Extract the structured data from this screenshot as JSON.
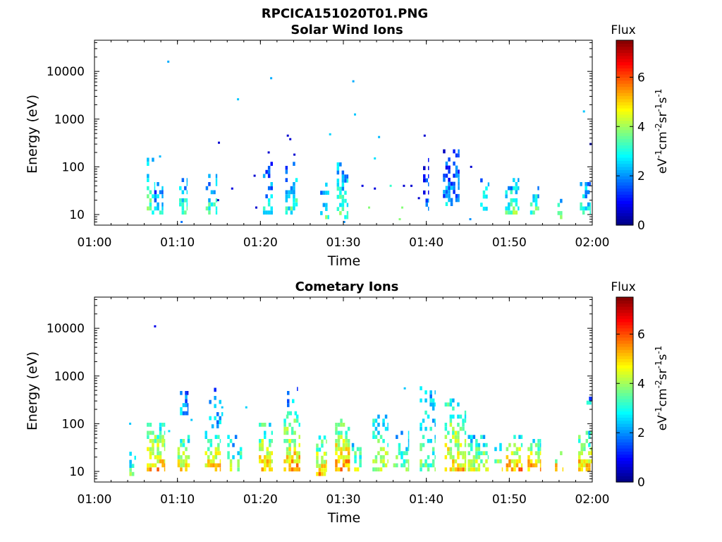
{
  "figure": {
    "filename": "RPCICA151020T01.PNG"
  },
  "colors": {
    "colormap": "jet",
    "axis": "#000000",
    "background": "#ffffff"
  },
  "chart_data": [
    {
      "type": "heatmap",
      "title": "Solar Wind Ions",
      "xlabel": "Time",
      "ylabel": "Energy (eV)",
      "xlim": [
        "01:00",
        "02:00"
      ],
      "ylim": [
        6,
        45000
      ],
      "yscale": "log",
      "x_ticks": [
        "01:00",
        "01:10",
        "01:20",
        "01:30",
        "01:40",
        "01:50",
        "02:00"
      ],
      "y_ticks": [
        {
          "value": 10,
          "label": "10"
        },
        {
          "value": 100,
          "label": "100"
        },
        {
          "value": 1000,
          "label": "1000"
        },
        {
          "value": 10000,
          "label": "10000"
        }
      ],
      "colorbar": {
        "title": "Flux",
        "label_base": "eV",
        "label_parts": [
          {
            "t": "eV",
            "sup": false
          },
          {
            "t": "-1",
            "sup": true
          },
          {
            "t": "cm",
            "sup": false
          },
          {
            "t": "-2",
            "sup": true
          },
          {
            "t": "sr",
            "sup": false
          },
          {
            "t": "-1",
            "sup": true
          },
          {
            "t": "s",
            "sup": false
          },
          {
            "t": "-1",
            "sup": true
          }
        ],
        "range": [
          0,
          7.5
        ],
        "ticks": [
          {
            "value": 0,
            "label": "0"
          },
          {
            "value": 2,
            "label": "2"
          },
          {
            "value": 4,
            "label": "4"
          },
          {
            "value": 6,
            "label": "6"
          }
        ]
      },
      "clusters": [
        {
          "t0": 6.3,
          "t1": 7.3,
          "e0": 10,
          "e1": 150,
          "v": 3.5,
          "d": 0.55
        },
        {
          "t0": 7.2,
          "t1": 8.3,
          "e0": 10,
          "e1": 40,
          "v": 2.8,
          "d": 0.6
        },
        {
          "t0": 10.2,
          "t1": 11.2,
          "e0": 10,
          "e1": 60,
          "v": 3.0,
          "d": 0.6
        },
        {
          "t0": 13.4,
          "t1": 14.8,
          "e0": 10,
          "e1": 60,
          "v": 3.2,
          "d": 0.6
        },
        {
          "t0": 20.3,
          "t1": 21.5,
          "e0": 10,
          "e1": 110,
          "v": 2.6,
          "d": 0.55
        },
        {
          "t0": 23.0,
          "t1": 24.5,
          "e0": 10,
          "e1": 110,
          "v": 3.2,
          "d": 0.6
        },
        {
          "t0": 27.2,
          "t1": 28.3,
          "e0": 8,
          "e1": 50,
          "v": 3.2,
          "d": 0.5
        },
        {
          "t0": 29.2,
          "t1": 30.6,
          "e0": 8,
          "e1": 120,
          "v": 3.5,
          "d": 0.55
        },
        {
          "t0": 39.6,
          "t1": 40.3,
          "e0": 12,
          "e1": 160,
          "v": 1.5,
          "d": 0.5
        },
        {
          "t0": 42.0,
          "t1": 44.0,
          "e0": 15,
          "e1": 230,
          "v": 2.2,
          "d": 0.55
        },
        {
          "t0": 46.5,
          "t1": 47.6,
          "e0": 12,
          "e1": 50,
          "v": 3.0,
          "d": 0.5
        },
        {
          "t0": 49.5,
          "t1": 51.2,
          "e0": 10,
          "e1": 50,
          "v": 3.6,
          "d": 0.6
        },
        {
          "t0": 52.5,
          "t1": 53.6,
          "e0": 10,
          "e1": 40,
          "v": 3.4,
          "d": 0.55
        },
        {
          "t0": 55.8,
          "t1": 56.6,
          "e0": 8,
          "e1": 20,
          "v": 3.6,
          "d": 0.6
        },
        {
          "t0": 58.5,
          "t1": 59.8,
          "e0": 10,
          "e1": 50,
          "v": 3.2,
          "d": 0.6
        }
      ],
      "points": [
        {
          "t": 8.9,
          "e": 16000,
          "v": 2.2
        },
        {
          "t": 21.3,
          "e": 7200,
          "v": 2.2
        },
        {
          "t": 31.2,
          "e": 6200,
          "v": 2.2
        },
        {
          "t": 17.3,
          "e": 2600,
          "v": 2.4
        },
        {
          "t": 31.4,
          "e": 1250,
          "v": 2.4
        },
        {
          "t": 59.0,
          "e": 1450,
          "v": 2.4
        },
        {
          "t": 28.4,
          "e": 480,
          "v": 2.5
        },
        {
          "t": 34.3,
          "e": 420,
          "v": 2.3
        },
        {
          "t": 23.3,
          "e": 450,
          "v": 0.6
        },
        {
          "t": 23.6,
          "e": 380,
          "v": 0.6
        },
        {
          "t": 39.8,
          "e": 450,
          "v": 0.6
        },
        {
          "t": 15.0,
          "e": 320,
          "v": 0.6
        },
        {
          "t": 59.8,
          "e": 300,
          "v": 0.6
        },
        {
          "t": 24.1,
          "e": 180,
          "v": 0.6
        },
        {
          "t": 21.0,
          "e": 200,
          "v": 0.6
        },
        {
          "t": 7.9,
          "e": 165,
          "v": 2.3
        },
        {
          "t": 33.8,
          "e": 150,
          "v": 2.6
        },
        {
          "t": 45.4,
          "e": 100,
          "v": 0.6
        },
        {
          "t": 19.3,
          "e": 65,
          "v": 0.6
        },
        {
          "t": 37.3,
          "e": 40,
          "v": 0.6
        },
        {
          "t": 38.2,
          "e": 40,
          "v": 0.6
        },
        {
          "t": 16.6,
          "e": 35,
          "v": 0.7
        },
        {
          "t": 32.3,
          "e": 40,
          "v": 0.7
        },
        {
          "t": 33.8,
          "e": 35,
          "v": 0.7
        },
        {
          "t": 14.9,
          "e": 20,
          "v": 0.6
        },
        {
          "t": 19.5,
          "e": 14,
          "v": 0.6
        },
        {
          "t": 35.7,
          "e": 40,
          "v": 3.2
        },
        {
          "t": 37.1,
          "e": 14,
          "v": 3.8
        },
        {
          "t": 33.1,
          "e": 14,
          "v": 3.8
        },
        {
          "t": 36.8,
          "e": 8,
          "v": 3.8
        },
        {
          "t": 39.1,
          "e": 22,
          "v": 0.6
        },
        {
          "t": 45.3,
          "e": 8,
          "v": 2.0
        },
        {
          "t": 30.1,
          "e": 7,
          "v": 2.0
        },
        {
          "t": 10.5,
          "e": 7,
          "v": 1.8
        }
      ]
    },
    {
      "type": "heatmap",
      "title": "Cometary Ions",
      "xlabel": "Time",
      "ylabel": "Energy (eV)",
      "xlim": [
        "01:00",
        "02:00"
      ],
      "ylim": [
        6,
        45000
      ],
      "yscale": "log",
      "x_ticks": [
        "01:00",
        "01:10",
        "01:20",
        "01:30",
        "01:40",
        "01:50",
        "02:00"
      ],
      "y_ticks": [
        {
          "value": 10,
          "label": "10"
        },
        {
          "value": 100,
          "label": "100"
        },
        {
          "value": 1000,
          "label": "1000"
        },
        {
          "value": 10000,
          "label": "10000"
        }
      ],
      "colorbar": {
        "title": "Flux",
        "label_base": "eV",
        "label_parts": [
          {
            "t": "eV",
            "sup": false
          },
          {
            "t": "-1",
            "sup": true
          },
          {
            "t": "cm",
            "sup": false
          },
          {
            "t": "-2",
            "sup": true
          },
          {
            "t": "sr",
            "sup": false
          },
          {
            "t": "-1",
            "sup": true
          },
          {
            "t": "s",
            "sup": false
          },
          {
            "t": "-1",
            "sup": true
          }
        ],
        "range": [
          0,
          7.5
        ],
        "ticks": [
          {
            "value": 0,
            "label": "0"
          },
          {
            "value": 2,
            "label": "2"
          },
          {
            "value": 4,
            "label": "4"
          },
          {
            "value": 6,
            "label": "6"
          }
        ]
      },
      "clusters": [
        {
          "t0": 4.2,
          "t1": 5.0,
          "e0": 8,
          "e1": 25,
          "v": 3.5,
          "d": 0.5
        },
        {
          "t0": 6.3,
          "t1": 8.5,
          "e0": 10,
          "e1": 100,
          "v": 5.2,
          "d": 0.75
        },
        {
          "t0": 10.0,
          "t1": 11.5,
          "e0": 10,
          "e1": 50,
          "v": 5.0,
          "d": 0.7
        },
        {
          "t0": 10.3,
          "t1": 11.3,
          "e0": 150,
          "e1": 400,
          "v": 2.4,
          "d": 0.4
        },
        {
          "t0": 13.3,
          "t1": 15.2,
          "e0": 10,
          "e1": 60,
          "v": 5.3,
          "d": 0.7
        },
        {
          "t0": 13.8,
          "t1": 15.5,
          "e0": 80,
          "e1": 500,
          "v": 2.4,
          "d": 0.3
        },
        {
          "t0": 16.0,
          "t1": 17.8,
          "e0": 10,
          "e1": 50,
          "v": 3.8,
          "d": 0.6
        },
        {
          "t0": 19.8,
          "t1": 21.5,
          "e0": 10,
          "e1": 100,
          "v": 5.2,
          "d": 0.7
        },
        {
          "t0": 22.8,
          "t1": 24.8,
          "e0": 10,
          "e1": 150,
          "v": 5.4,
          "d": 0.75
        },
        {
          "t0": 23.2,
          "t1": 24.5,
          "e0": 150,
          "e1": 550,
          "v": 2.6,
          "d": 0.4
        },
        {
          "t0": 26.7,
          "t1": 28.0,
          "e0": 8,
          "e1": 50,
          "v": 5.2,
          "d": 0.7
        },
        {
          "t0": 29.0,
          "t1": 30.8,
          "e0": 10,
          "e1": 120,
          "v": 5.6,
          "d": 0.75
        },
        {
          "t0": 31.0,
          "t1": 32.2,
          "e0": 10,
          "e1": 50,
          "v": 4.0,
          "d": 0.55
        },
        {
          "t0": 33.5,
          "t1": 35.3,
          "e0": 10,
          "e1": 150,
          "v": 4.3,
          "d": 0.6
        },
        {
          "t0": 36.0,
          "t1": 37.8,
          "e0": 10,
          "e1": 60,
          "v": 3.8,
          "d": 0.5
        },
        {
          "t0": 39.2,
          "t1": 41.0,
          "e0": 10,
          "e1": 600,
          "v": 3.6,
          "d": 0.55
        },
        {
          "t0": 42.2,
          "t1": 44.8,
          "e0": 10,
          "e1": 300,
          "v": 5.0,
          "d": 0.65
        },
        {
          "t0": 45.0,
          "t1": 47.5,
          "e0": 10,
          "e1": 50,
          "v": 4.6,
          "d": 0.65
        },
        {
          "t0": 48.2,
          "t1": 49.2,
          "e0": 10,
          "e1": 35,
          "v": 4.4,
          "d": 0.6
        },
        {
          "t0": 49.6,
          "t1": 51.6,
          "e0": 10,
          "e1": 50,
          "v": 5.5,
          "d": 0.8
        },
        {
          "t0": 52.2,
          "t1": 53.8,
          "e0": 10,
          "e1": 40,
          "v": 5.4,
          "d": 0.75
        },
        {
          "t0": 55.5,
          "t1": 56.5,
          "e0": 10,
          "e1": 25,
          "v": 5.2,
          "d": 0.7
        },
        {
          "t0": 58.3,
          "t1": 60.0,
          "e0": 10,
          "e1": 60,
          "v": 5.3,
          "d": 0.7
        },
        {
          "t0": 59.3,
          "t1": 60.0,
          "e0": 250,
          "e1": 350,
          "v": 2.5,
          "d": 0.6
        }
      ],
      "points": [
        {
          "t": 7.3,
          "e": 11000,
          "v": 0.8
        },
        {
          "t": 18.3,
          "e": 220,
          "v": 2.5
        },
        {
          "t": 37.4,
          "e": 550,
          "v": 2.4
        },
        {
          "t": 4.3,
          "e": 100,
          "v": 2.4
        },
        {
          "t": 15.4,
          "e": 220,
          "v": 2.4
        },
        {
          "t": 11.7,
          "e": 120,
          "v": 2.4
        },
        {
          "t": 9.0,
          "e": 70,
          "v": 2.6
        }
      ]
    }
  ]
}
